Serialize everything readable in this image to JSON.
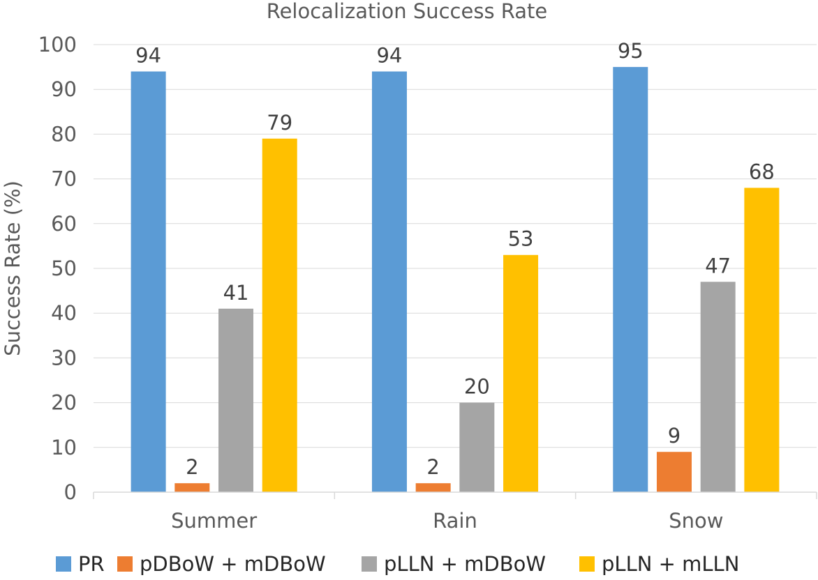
{
  "chart_data": {
    "type": "bar",
    "title": "Relocalization Success Rate",
    "xlabel": "",
    "ylabel": "Success Rate (%)",
    "ylim": [
      0,
      100
    ],
    "yticks": [
      0,
      10,
      20,
      30,
      40,
      50,
      60,
      70,
      80,
      90,
      100
    ],
    "categories": [
      "Summer",
      "Rain",
      "Snow"
    ],
    "series": [
      {
        "name": "PR",
        "color": "#5b9bd5",
        "values": [
          94,
          94,
          95
        ]
      },
      {
        "name": "pDBoW + mDBoW",
        "color": "#ed7d31",
        "values": [
          2,
          2,
          9
        ]
      },
      {
        "name": "pLLN + mDBoW",
        "color": "#a5a5a5",
        "values": [
          41,
          20,
          47
        ]
      },
      {
        "name": "pLLN + mLLN",
        "color": "#ffc000",
        "values": [
          79,
          53,
          68
        ]
      }
    ],
    "grid": true,
    "legend": "bottom"
  }
}
